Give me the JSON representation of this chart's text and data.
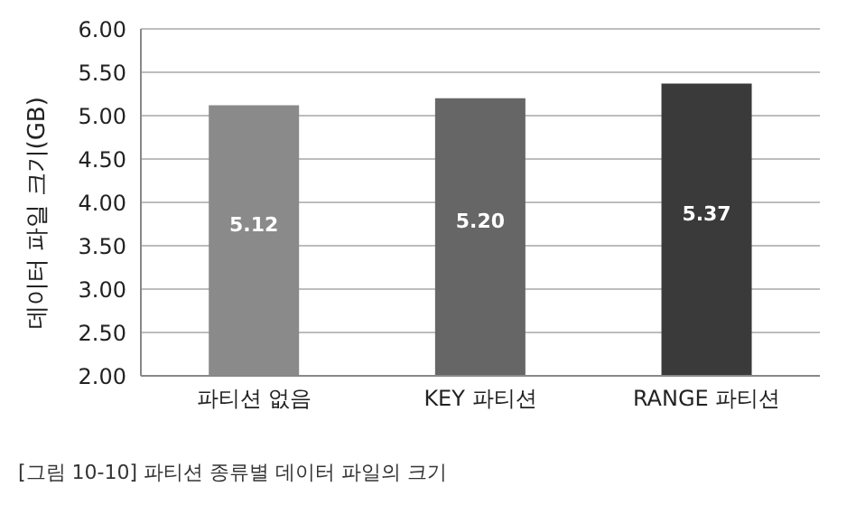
{
  "chart_data": {
    "type": "bar",
    "ylabel": "데이터 파일 크기(GB)",
    "categories": [
      "파티션 없음",
      "KEY 파티션",
      "RANGE 파티션"
    ],
    "values": [
      5.12,
      5.2,
      5.37
    ],
    "colors": [
      "#8a8a8a",
      "#666666",
      "#3a3a3a"
    ],
    "value_labels": [
      "5.12",
      "5.20",
      "5.37"
    ],
    "ylim": [
      2,
      6
    ],
    "yticks": [
      {
        "value": 2,
        "label": "2.00"
      },
      {
        "value": 2.5,
        "label": "2.50"
      },
      {
        "value": 3,
        "label": "3.00"
      },
      {
        "value": 3.5,
        "label": "3.50"
      },
      {
        "value": 4,
        "label": "4.00"
      },
      {
        "value": 4.5,
        "label": "4.50"
      },
      {
        "value": 5,
        "label": "5.00"
      },
      {
        "value": 5.5,
        "label": "5.50"
      },
      {
        "value": 6,
        "label": "6.00"
      }
    ],
    "grid": "y",
    "annotations": [
      "[그림 10-10] 파티션 종류별 데이터 파일의 크기"
    ]
  }
}
